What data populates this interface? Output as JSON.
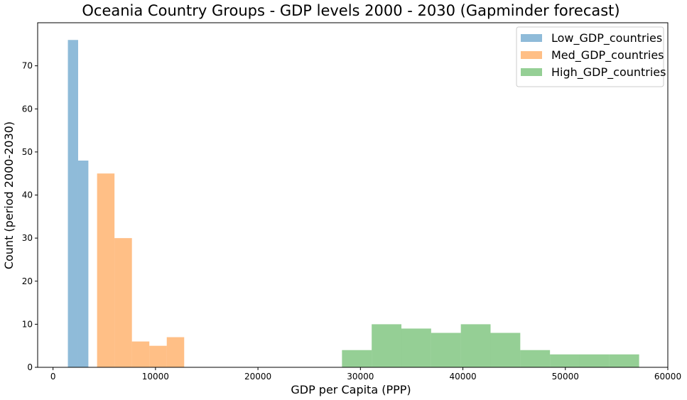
{
  "chart_data": {
    "type": "histogram",
    "title": "Oceania Country Groups - GDP levels 2000 - 2030 (Gapminder forecast)",
    "xlabel": "GDP per Capita (PPP)",
    "ylabel": "Count (period 2000-2030)",
    "xlim": [
      -1500,
      60000
    ],
    "ylim": [
      0,
      80
    ],
    "xticks": [
      0,
      10000,
      20000,
      30000,
      40000,
      50000,
      60000
    ],
    "yticks": [
      0,
      10,
      20,
      30,
      40,
      50,
      60,
      70
    ],
    "grid": false,
    "legend_position": "top-right",
    "series": [
      {
        "name": "Low_GDP_countries",
        "color": "#1f77b4",
        "alpha": 0.5,
        "bins": [
          {
            "x0": 1450,
            "x1": 2450,
            "count": 76
          },
          {
            "x0": 2450,
            "x1": 3450,
            "count": 48
          }
        ]
      },
      {
        "name": "Med_GDP_countries",
        "color": "#ff7f0e",
        "alpha": 0.5,
        "bins": [
          {
            "x0": 4300,
            "x1": 6000,
            "count": 45
          },
          {
            "x0": 6000,
            "x1": 7700,
            "count": 30
          },
          {
            "x0": 7700,
            "x1": 9400,
            "count": 6
          },
          {
            "x0": 9400,
            "x1": 11100,
            "count": 5
          },
          {
            "x0": 11100,
            "x1": 12800,
            "count": 7
          }
        ]
      },
      {
        "name": "High_GDP_countries",
        "color": "#2ca02c",
        "alpha": 0.5,
        "bins": [
          {
            "x0": 28200,
            "x1": 31100,
            "count": 4
          },
          {
            "x0": 31100,
            "x1": 34000,
            "count": 10
          },
          {
            "x0": 34000,
            "x1": 36900,
            "count": 9
          },
          {
            "x0": 36900,
            "x1": 39800,
            "count": 8
          },
          {
            "x0": 39800,
            "x1": 42700,
            "count": 10
          },
          {
            "x0": 42700,
            "x1": 45600,
            "count": 8
          },
          {
            "x0": 45600,
            "x1": 48500,
            "count": 4
          },
          {
            "x0": 48500,
            "x1": 51400,
            "count": 3
          },
          {
            "x0": 51400,
            "x1": 54300,
            "count": 3
          },
          {
            "x0": 54300,
            "x1": 57200,
            "count": 3
          }
        ]
      }
    ]
  }
}
